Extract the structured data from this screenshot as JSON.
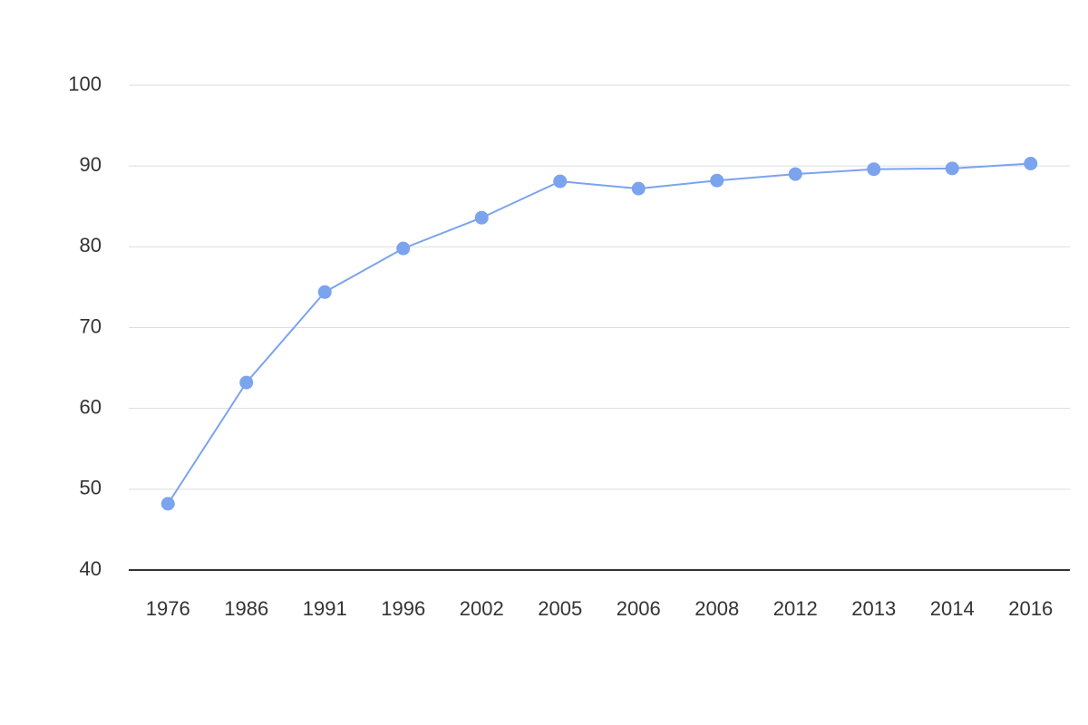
{
  "chart_data": {
    "type": "line",
    "categories": [
      "1976",
      "1986",
      "1991",
      "1996",
      "2002",
      "2005",
      "2006",
      "2008",
      "2012",
      "2013",
      "2014",
      "2016"
    ],
    "series": [
      {
        "color": "#7ba3ee",
        "values": [
          48.2,
          63.2,
          74.4,
          79.8,
          83.6,
          88.1,
          87.2,
          88.2,
          89.0,
          89.6,
          89.7,
          90.3
        ]
      }
    ],
    "ylim": [
      40,
      100
    ],
    "yticks": [
      40,
      50,
      60,
      70,
      80,
      90,
      100
    ],
    "grid": true
  }
}
